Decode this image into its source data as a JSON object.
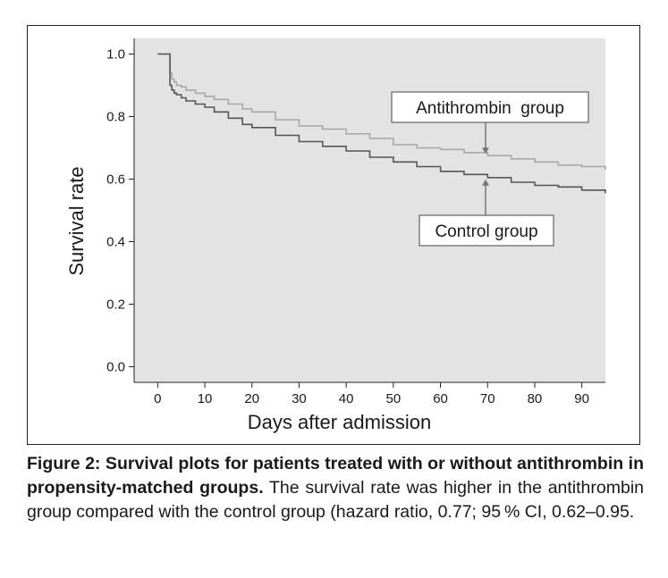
{
  "chart_data": {
    "type": "line",
    "step": true,
    "title": "",
    "xlabel": "Days after admission",
    "ylabel": "Survival rate",
    "xlim": [
      -5,
      95
    ],
    "ylim": [
      -0.05,
      1.05
    ],
    "xticks": [
      "0",
      "10",
      "20",
      "30",
      "40",
      "50",
      "60",
      "70",
      "80",
      "90"
    ],
    "yticks": [
      "0.0",
      "0.2",
      "0.4",
      "0.6",
      "0.8",
      "1.0"
    ],
    "grid": false,
    "background_color": "#e3e3e3",
    "series": [
      {
        "name": "Antithrombin group",
        "color": "#a8a8a8",
        "x": [
          0,
          2,
          2.6,
          3,
          3.5,
          4,
          5,
          6,
          8,
          10,
          12,
          15,
          18,
          20,
          25,
          30,
          35,
          40,
          45,
          50,
          55,
          60,
          65,
          70,
          75,
          80,
          85,
          90,
          95
        ],
        "y": [
          1.0,
          1.0,
          0.94,
          0.92,
          0.91,
          0.9,
          0.895,
          0.885,
          0.875,
          0.865,
          0.855,
          0.84,
          0.825,
          0.815,
          0.79,
          0.77,
          0.76,
          0.745,
          0.73,
          0.71,
          0.7,
          0.695,
          0.685,
          0.675,
          0.665,
          0.655,
          0.645,
          0.64,
          0.63
        ]
      },
      {
        "name": "Control group",
        "color": "#555555",
        "x": [
          0,
          2,
          2.6,
          3,
          3.5,
          4,
          5,
          6,
          8,
          10,
          12,
          15,
          18,
          20,
          25,
          30,
          35,
          40,
          45,
          50,
          55,
          60,
          65,
          70,
          75,
          80,
          85,
          90,
          95
        ],
        "y": [
          1.0,
          1.0,
          0.9,
          0.885,
          0.875,
          0.87,
          0.86,
          0.85,
          0.84,
          0.83,
          0.815,
          0.795,
          0.775,
          0.765,
          0.74,
          0.72,
          0.705,
          0.69,
          0.67,
          0.655,
          0.64,
          0.625,
          0.615,
          0.605,
          0.59,
          0.58,
          0.575,
          0.565,
          0.555
        ]
      }
    ],
    "annotations": [
      {
        "label": "Antithrombin  group",
        "arrow_to_series": "Antithrombin group"
      },
      {
        "label": "Control group",
        "arrow_to_series": "Control group"
      }
    ]
  },
  "caption": {
    "bold": "Figure 2: Survival plots for patients treated with or without anti­thrombin in propensity-matched groups.",
    "text": " The survival rate was higher in the antithrombin group compared with the control group (hazard ratio, 0.77; 95 % CI, 0.62–0.95."
  }
}
